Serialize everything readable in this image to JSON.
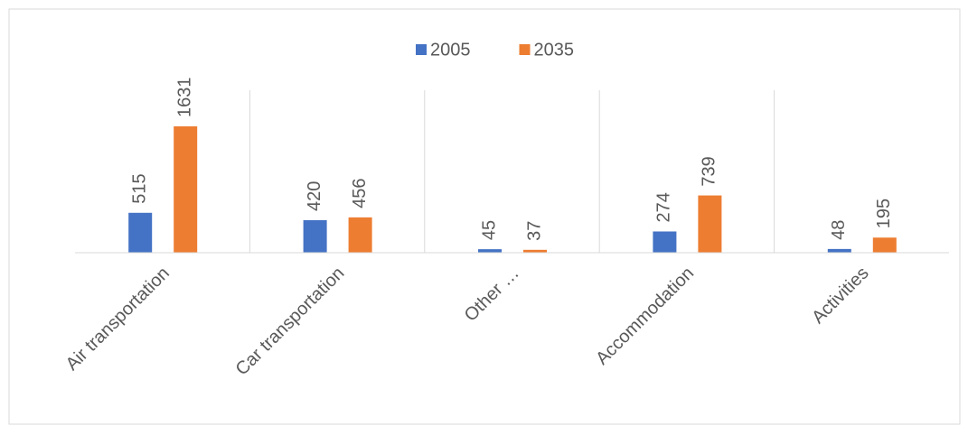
{
  "chart_data": {
    "type": "bar",
    "categories": [
      "Air transportation",
      "Car transportation",
      "Other …",
      "Accommodation",
      "Activities"
    ],
    "series": [
      {
        "name": "2005",
        "color": "#4472c4",
        "values": [
          515,
          420,
          45,
          274,
          48
        ]
      },
      {
        "name": "2035",
        "color": "#ed7d31",
        "values": [
          1631,
          456,
          37,
          739,
          195
        ]
      }
    ],
    "legend": "top"
  }
}
